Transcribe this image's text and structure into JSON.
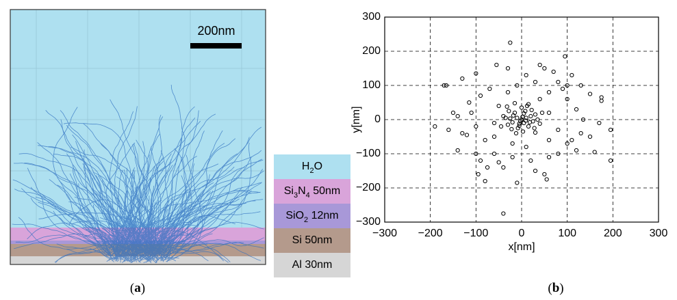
{
  "panel_a": {
    "caption": "a",
    "scale_bar": "200nm",
    "layers": [
      {
        "label": [
          "H",
          "2",
          "O"
        ],
        "color": "#aee0f0"
      },
      {
        "label": [
          "Si",
          "3",
          "N",
          "4",
          " 50nm"
        ],
        "color": "#d9a4da"
      },
      {
        "label": [
          "SiO",
          "2",
          " 12nm"
        ],
        "color": "#a898d8"
      },
      {
        "label": [
          "Si 50nm"
        ],
        "color": "#b49a8c"
      },
      {
        "label": [
          "Al 30nm"
        ],
        "color": "#d6d6d6"
      }
    ]
  },
  "chart_data": {
    "type": "scatter",
    "caption": "b",
    "x_label": "x[nm]",
    "y_label": "y[nm]",
    "color": "#000000",
    "grid": true,
    "xlim": [
      -300,
      300
    ],
    "ylim": [
      -300,
      300
    ],
    "xticks": [
      {
        "value": -300,
        "label": "−300"
      },
      {
        "value": -200,
        "label": "−200"
      },
      {
        "value": -100,
        "label": "−100"
      },
      0,
      100,
      200,
      300
    ],
    "yticks": [
      {
        "value": -300,
        "label": "−300"
      },
      {
        "value": -200,
        "label": "−200"
      },
      {
        "value": -100,
        "label": "−100"
      },
      0,
      100,
      200,
      300
    ],
    "x": [
      -25,
      -170,
      -165,
      95,
      -40,
      -10,
      55,
      195,
      -190,
      195,
      175,
      175,
      150,
      -100,
      -55,
      -30,
      40,
      50,
      70,
      110,
      100,
      -150,
      -140,
      -115,
      -130,
      -120,
      -100,
      -90,
      -95,
      -80,
      -75,
      -60,
      -50,
      -40,
      -20,
      20,
      30,
      50,
      60,
      80,
      100,
      110,
      130,
      150,
      160,
      135,
      120,
      100,
      90,
      80,
      60,
      30,
      10,
      -10,
      -30,
      -70,
      -90,
      -110,
      -100,
      -80,
      -60,
      60,
      120,
      -130,
      -160,
      130,
      -50,
      40,
      60,
      -60,
      170,
      -140,
      10,
      -20,
      80,
      0,
      10,
      -10,
      5,
      -5,
      20,
      -20,
      15,
      -15,
      25,
      -25,
      30,
      -30,
      8,
      -8,
      35,
      -35,
      0,
      3,
      22,
      -22,
      -28,
      28,
      12,
      -12,
      40,
      -40,
      18,
      -18,
      5,
      -5,
      45,
      -45,
      15,
      -15,
      30,
      -32,
      2,
      -3,
      9
    ],
    "values": [
      225,
      100,
      100,
      185,
      -275,
      -185,
      -175,
      -120,
      -20,
      -30,
      55,
      65,
      75,
      135,
      160,
      150,
      160,
      150,
      140,
      130,
      100,
      20,
      10,
      50,
      -40,
      -45,
      -100,
      -120,
      -160,
      -180,
      -140,
      -100,
      -125,
      -140,
      -110,
      -120,
      -150,
      -160,
      -110,
      -100,
      -70,
      -60,
      -40,
      -50,
      -95,
      0,
      30,
      60,
      90,
      110,
      80,
      110,
      130,
      100,
      80,
      90,
      70,
      20,
      -20,
      -60,
      -50,
      -60,
      -90,
      120,
      -30,
      100,
      40,
      60,
      20,
      -10,
      -10,
      -90,
      -80,
      -70,
      -30,
      0,
      5,
      5,
      -10,
      -12,
      10,
      -8,
      -20,
      20,
      -5,
      3,
      15,
      -15,
      25,
      -25,
      0,
      5,
      35,
      -35,
      28,
      -28,
      25,
      -25,
      40,
      -40,
      -12,
      10,
      -8,
      12,
      18,
      -18,
      20,
      -20,
      45,
      48,
      -38,
      38,
      8,
      -4,
      -3
    ]
  }
}
